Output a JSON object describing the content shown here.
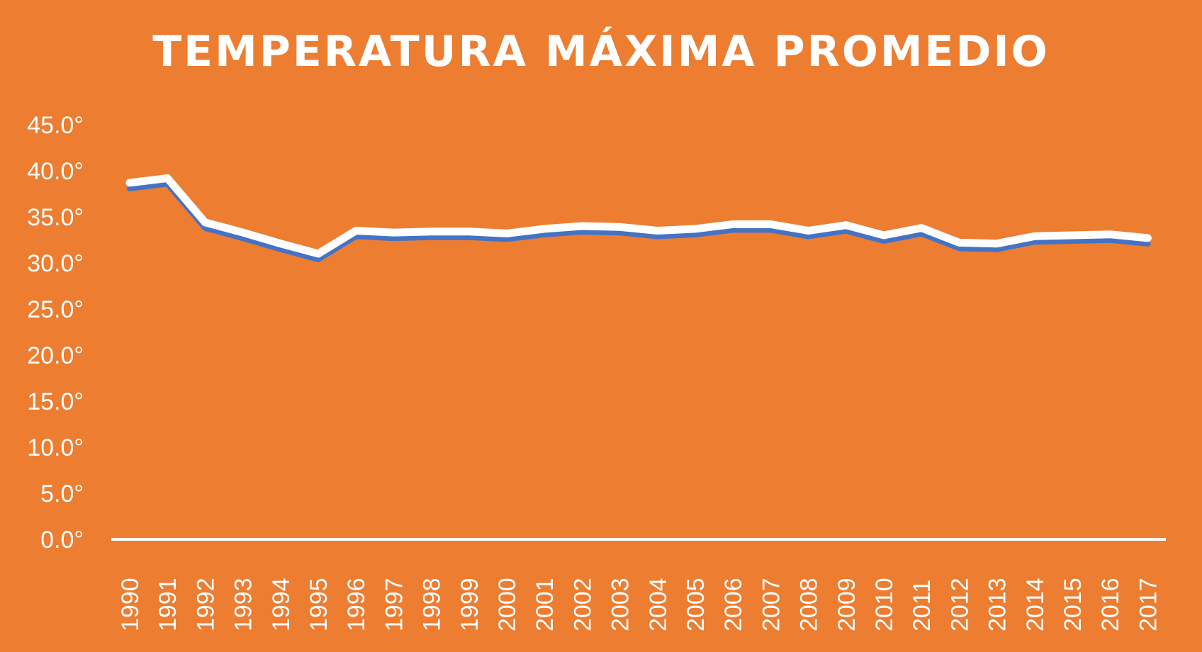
{
  "chart_data": {
    "type": "line",
    "title": "TEMPERATURA MÁXIMA PROMEDIO",
    "xlabel": "",
    "ylabel": "",
    "categories": [
      "1990",
      "1991",
      "1992",
      "1993",
      "1994",
      "1995",
      "1996",
      "1997",
      "1998",
      "1999",
      "2000",
      "2001",
      "2002",
      "2003",
      "2004",
      "2005",
      "2006",
      "2007",
      "2008",
      "2009",
      "2010",
      "2011",
      "2012",
      "2013",
      "2014",
      "2015",
      "2016",
      "2017"
    ],
    "series": [
      {
        "values": [
          38.7,
          39.2,
          34.4,
          33.3,
          32.1,
          31.0,
          33.5,
          33.3,
          33.4,
          33.4,
          33.2,
          33.7,
          34.0,
          33.9,
          33.5,
          33.7,
          34.2,
          34.2,
          33.5,
          34.1,
          33.0,
          33.8,
          32.2,
          32.1,
          32.9,
          33.0,
          33.1,
          32.7
        ]
      }
    ],
    "ylim": [
      0,
      45
    ],
    "yticks": [
      0,
      5,
      10,
      15,
      20,
      25,
      30,
      35,
      40,
      45
    ],
    "ytick_labels": [
      "0.0°",
      "5.0°",
      "10.0°",
      "15.0°",
      "20.0°",
      "25.0°",
      "30.0°",
      "35.0°",
      "40.0°",
      "45.0°"
    ],
    "grid": false,
    "drop_lines": true,
    "colors": {
      "background": "#ED7D31",
      "line": "#FFFFFF",
      "line_shadow": "#4472C4",
      "text": "#FFFFFF"
    }
  }
}
